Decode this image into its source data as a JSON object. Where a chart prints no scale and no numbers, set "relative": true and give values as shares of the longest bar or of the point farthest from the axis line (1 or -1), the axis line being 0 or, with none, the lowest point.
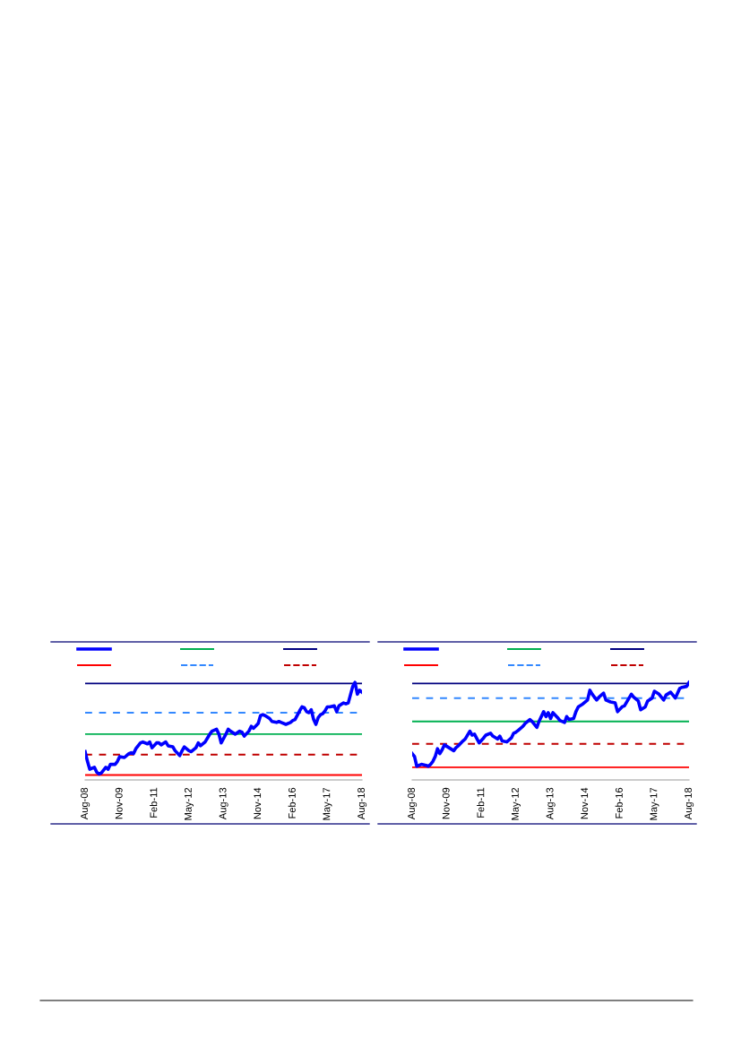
{
  "chart_data": [
    {
      "type": "line",
      "relative": true,
      "grid": false,
      "marker": "none",
      "line_style": "solid",
      "xlim": [
        "2008-08",
        "2018-08"
      ],
      "xticks": [
        {
          "value": "2008-08",
          "label": "Aug-08"
        },
        {
          "value": "2009-11",
          "label": "Nov-09"
        },
        {
          "value": "2011-02",
          "label": "Feb-11"
        },
        {
          "value": "2012-05",
          "label": "May-12"
        },
        {
          "value": "2013-08",
          "label": "Aug-13"
        },
        {
          "value": "2014-11",
          "label": "Nov-14"
        },
        {
          "value": "2016-02",
          "label": "Feb-16"
        },
        {
          "value": "2017-05",
          "label": "May-17"
        },
        {
          "value": "2018-08",
          "label": "Aug-18"
        }
      ],
      "series": [
        {
          "color": "#0000ff",
          "x": [
            "2008-08",
            "2008-09",
            "2008-10",
            "2008-12",
            "2009-01",
            "2009-02",
            "2009-03",
            "2009-05",
            "2009-06",
            "2009-07",
            "2009-09",
            "2009-10",
            "2009-11",
            "2010-01",
            "2010-03",
            "2010-04",
            "2010-05",
            "2010-06",
            "2010-08",
            "2010-09",
            "2010-11",
            "2010-12",
            "2011-01",
            "2011-03",
            "2011-04",
            "2011-05",
            "2011-07",
            "2011-08",
            "2011-10",
            "2011-11",
            "2012-01",
            "2012-02",
            "2012-03",
            "2012-05",
            "2012-06",
            "2012-08",
            "2012-09",
            "2012-10",
            "2012-12",
            "2013-01",
            "2013-02",
            "2013-03",
            "2013-05",
            "2013-06",
            "2013-07",
            "2013-09",
            "2013-10",
            "2013-11",
            "2014-01",
            "2014-03",
            "2014-04",
            "2014-05",
            "2014-07",
            "2014-08",
            "2014-09",
            "2014-11",
            "2014-12",
            "2015-01",
            "2015-02",
            "2015-04",
            "2015-05",
            "2015-07",
            "2015-08",
            "2015-09",
            "2015-11",
            "2016-01",
            "2016-02",
            "2016-03",
            "2016-05",
            "2016-06",
            "2016-07",
            "2016-08",
            "2016-09",
            "2016-10",
            "2016-11",
            "2016-12",
            "2017-01",
            "2017-02",
            "2017-03",
            "2017-04",
            "2017-05",
            "2017-06",
            "2017-08",
            "2017-09",
            "2017-10",
            "2017-12",
            "2018-01",
            "2018-02",
            "2018-04",
            "2018-05",
            "2018-06",
            "2018-07",
            "2018-08"
          ],
          "values": [
            0.29,
            0.19,
            0.11,
            0.13,
            0.08,
            0.06,
            0.07,
            0.13,
            0.11,
            0.16,
            0.16,
            0.19,
            0.24,
            0.23,
            0.27,
            0.28,
            0.27,
            0.32,
            0.38,
            0.39,
            0.37,
            0.39,
            0.33,
            0.38,
            0.38,
            0.36,
            0.39,
            0.35,
            0.34,
            0.3,
            0.25,
            0.3,
            0.34,
            0.3,
            0.29,
            0.33,
            0.38,
            0.35,
            0.39,
            0.43,
            0.47,
            0.5,
            0.52,
            0.47,
            0.38,
            0.47,
            0.52,
            0.5,
            0.47,
            0.5,
            0.49,
            0.45,
            0.5,
            0.55,
            0.53,
            0.58,
            0.66,
            0.67,
            0.66,
            0.63,
            0.6,
            0.59,
            0.6,
            0.59,
            0.57,
            0.59,
            0.61,
            0.62,
            0.71,
            0.75,
            0.74,
            0.7,
            0.69,
            0.72,
            0.62,
            0.57,
            0.64,
            0.67,
            0.68,
            0.71,
            0.75,
            0.75,
            0.76,
            0.7,
            0.76,
            0.79,
            0.78,
            0.79,
            0.96,
            1.0,
            0.88,
            0.92,
            0.9
          ]
        }
      ],
      "ref_lines": [
        {
          "axis": "y",
          "value": 0.05,
          "color": "#ff0000",
          "line_style": "solid"
        },
        {
          "axis": "y",
          "value": 0.47,
          "color": "#00b050",
          "line_style": "solid"
        },
        {
          "axis": "y",
          "value": 0.69,
          "color": "#3388ff",
          "line_style": "dashed"
        },
        {
          "axis": "y",
          "value": 0.99,
          "color": "#000080",
          "line_style": "solid"
        },
        {
          "axis": "y",
          "value": 0.26,
          "color": "#c00000",
          "line_style": "dashed"
        }
      ]
    },
    {
      "type": "line",
      "relative": true,
      "grid": false,
      "marker": "none",
      "line_style": "solid",
      "xlim": [
        "2008-08",
        "2018-08"
      ],
      "xticks": [
        {
          "value": "2008-08",
          "label": "Aug-08"
        },
        {
          "value": "2009-11",
          "label": "Nov-09"
        },
        {
          "value": "2011-02",
          "label": "Feb-11"
        },
        {
          "value": "2012-05",
          "label": "May-12"
        },
        {
          "value": "2013-08",
          "label": "Aug-13"
        },
        {
          "value": "2014-11",
          "label": "Nov-14"
        },
        {
          "value": "2016-02",
          "label": "Feb-16"
        },
        {
          "value": "2017-05",
          "label": "May-17"
        },
        {
          "value": "2018-08",
          "label": "Aug-18"
        }
      ],
      "series": [
        {
          "color": "#0000ff",
          "x": [
            "2008-08",
            "2008-09",
            "2008-10",
            "2008-11",
            "2008-12",
            "2009-02",
            "2009-03",
            "2009-04",
            "2009-05",
            "2009-06",
            "2009-07",
            "2009-08",
            "2009-09",
            "2009-10",
            "2009-12",
            "2010-02",
            "2010-03",
            "2010-04",
            "2010-06",
            "2010-07",
            "2010-09",
            "2010-10",
            "2010-11",
            "2011-01",
            "2011-03",
            "2011-04",
            "2011-06",
            "2011-07",
            "2011-09",
            "2011-10",
            "2011-11",
            "2012-01",
            "2012-03",
            "2012-04",
            "2012-05",
            "2012-06",
            "2012-08",
            "2012-09",
            "2012-11",
            "2012-12",
            "2013-01",
            "2013-02",
            "2013-03",
            "2013-05",
            "2013-06",
            "2013-07",
            "2013-08",
            "2013-09",
            "2013-11",
            "2013-12",
            "2014-02",
            "2014-03",
            "2014-04",
            "2014-06",
            "2014-07",
            "2014-08",
            "2014-10",
            "2014-12",
            "2015-01",
            "2015-02",
            "2015-04",
            "2015-05",
            "2015-07",
            "2015-08",
            "2015-10",
            "2015-12",
            "2016-01",
            "2016-03",
            "2016-04",
            "2016-06",
            "2016-07",
            "2016-08",
            "2016-10",
            "2016-11",
            "2017-01",
            "2017-02",
            "2017-04",
            "2017-05",
            "2017-07",
            "2017-09",
            "2017-10",
            "2017-12",
            "2018-01",
            "2018-02",
            "2018-04",
            "2018-05",
            "2018-07",
            "2018-08"
          ],
          "values": [
            0.27,
            0.24,
            0.14,
            0.15,
            0.16,
            0.15,
            0.14,
            0.16,
            0.19,
            0.24,
            0.32,
            0.27,
            0.31,
            0.36,
            0.33,
            0.3,
            0.33,
            0.35,
            0.4,
            0.42,
            0.5,
            0.46,
            0.47,
            0.38,
            0.43,
            0.46,
            0.48,
            0.45,
            0.42,
            0.45,
            0.4,
            0.39,
            0.43,
            0.48,
            0.49,
            0.51,
            0.55,
            0.58,
            0.62,
            0.6,
            0.57,
            0.54,
            0.6,
            0.7,
            0.65,
            0.69,
            0.63,
            0.69,
            0.64,
            0.61,
            0.59,
            0.65,
            0.62,
            0.63,
            0.7,
            0.75,
            0.78,
            0.82,
            0.92,
            0.88,
            0.82,
            0.85,
            0.89,
            0.82,
            0.8,
            0.79,
            0.7,
            0.75,
            0.76,
            0.84,
            0.88,
            0.85,
            0.81,
            0.72,
            0.75,
            0.81,
            0.84,
            0.91,
            0.88,
            0.82,
            0.87,
            0.9,
            0.87,
            0.84,
            0.94,
            0.95,
            0.96,
            1.0
          ]
        }
      ],
      "ref_lines": [
        {
          "axis": "y",
          "value": 0.13,
          "color": "#ff0000",
          "line_style": "solid"
        },
        {
          "axis": "y",
          "value": 0.6,
          "color": "#00b050",
          "line_style": "solid"
        },
        {
          "axis": "y",
          "value": 0.84,
          "color": "#3388ff",
          "line_style": "dashed"
        },
        {
          "axis": "y",
          "value": 0.99,
          "color": "#000080",
          "line_style": "solid"
        },
        {
          "axis": "y",
          "value": 0.37,
          "color": "#c00000",
          "line_style": "dashed"
        }
      ]
    }
  ]
}
